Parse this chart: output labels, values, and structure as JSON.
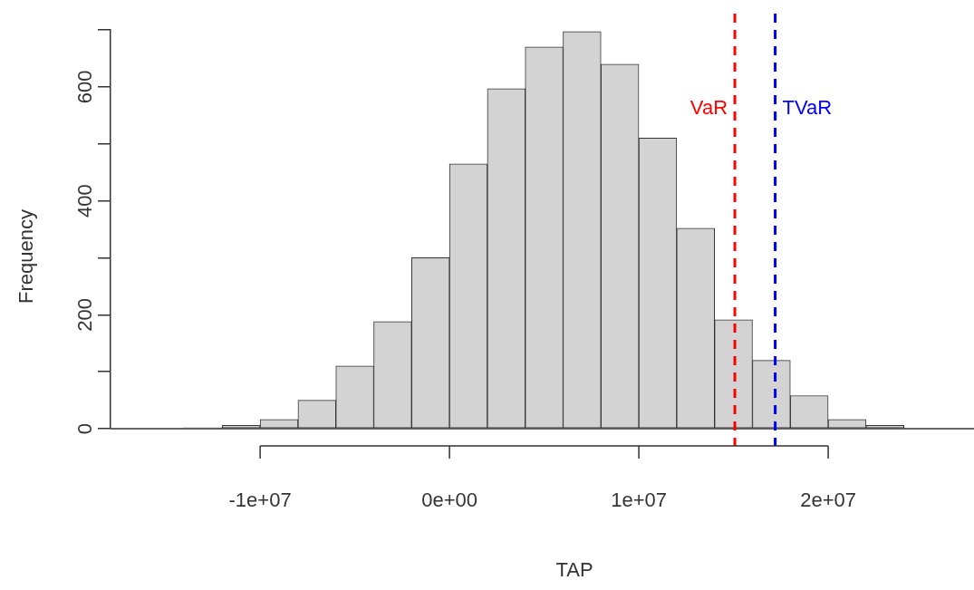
{
  "chart_data": {
    "type": "histogram",
    "xlabel": "TAP",
    "ylabel": "Frequency",
    "bins": [
      -14000000,
      -12000000,
      -10000000,
      -8000000,
      -6000000,
      -4000000,
      -2000000,
      0,
      2000000,
      4000000,
      6000000,
      8000000,
      10000000,
      12000000,
      14000000,
      16000000,
      18000000,
      20000000,
      22000000,
      24000000
    ],
    "values": [
      2,
      6,
      16,
      50,
      110,
      188,
      300,
      465,
      597,
      670,
      697,
      640,
      510,
      352,
      191,
      120,
      58,
      16,
      6
    ],
    "color": "#d3d3d3",
    "xlim": [
      -17900000,
      27700000
    ],
    "xticks": [
      {
        "value": -10000000,
        "label": "-1e+07"
      },
      {
        "value": 0,
        "label": "0e+00"
      },
      {
        "value": 10000000,
        "label": "1e+07"
      },
      {
        "value": 20000000,
        "label": "2e+07"
      }
    ],
    "ylim": [
      0,
      700
    ],
    "yticks": [
      0,
      {
        "value": 100,
        "label": null
      },
      200,
      {
        "value": 300,
        "label": null
      },
      400,
      {
        "value": 500,
        "label": null
      },
      600,
      {
        "value": 700,
        "label": null
      }
    ],
    "ref_lines": [
      {
        "axis": "y",
        "value": 0,
        "color": "#333333",
        "line_style": "solid"
      },
      {
        "axis": "x",
        "value": 15070000,
        "label": "VaR",
        "color": "#ff0000",
        "line_style": "dashed"
      },
      {
        "axis": "x",
        "value": 17200000,
        "label": "TVaR",
        "color": "#0000ff",
        "line_style": "dashed"
      }
    ],
    "grid": false,
    "legend": false
  }
}
